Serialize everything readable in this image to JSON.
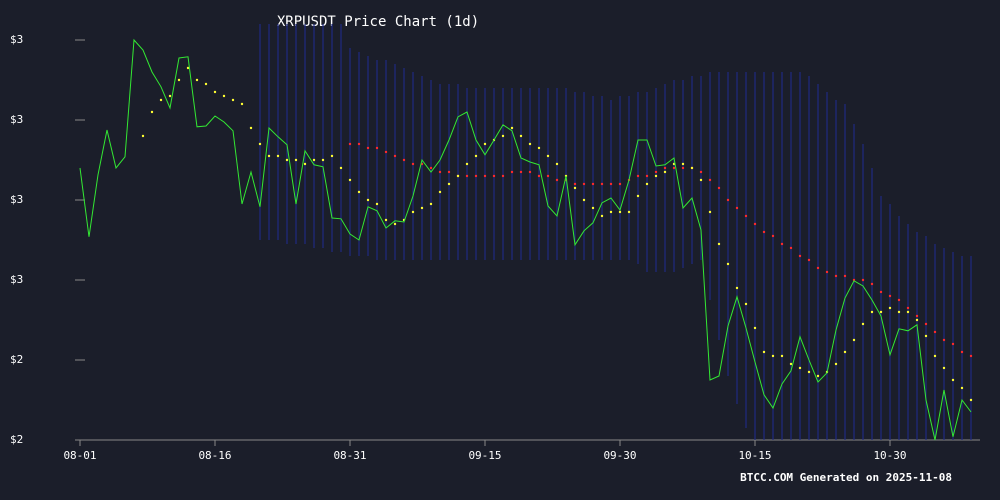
{
  "chart_data": {
    "type": "line",
    "title": "XRPUSDT Price Chart (1d)",
    "footer": "BTCC.COM Generated on 2025-11-08",
    "x": [
      "08-01",
      "08-02",
      "08-03",
      "08-04",
      "08-05",
      "08-06",
      "08-07",
      "08-08",
      "08-09",
      "08-10",
      "08-11",
      "08-12",
      "08-13",
      "08-14",
      "08-15",
      "08-16",
      "08-17",
      "08-18",
      "08-19",
      "08-20",
      "08-21",
      "08-22",
      "08-23",
      "08-24",
      "08-25",
      "08-26",
      "08-27",
      "08-28",
      "08-29",
      "08-30",
      "08-31",
      "09-01",
      "09-02",
      "09-03",
      "09-04",
      "09-05",
      "09-06",
      "09-07",
      "09-08",
      "09-09",
      "09-10",
      "09-11",
      "09-12",
      "09-13",
      "09-14",
      "09-15",
      "09-16",
      "09-17",
      "09-18",
      "09-19",
      "09-20",
      "09-21",
      "09-22",
      "09-23",
      "09-24",
      "09-25",
      "09-26",
      "09-27",
      "09-28",
      "09-29",
      "09-30",
      "10-01",
      "10-02",
      "10-03",
      "10-04",
      "10-05",
      "10-06",
      "10-07",
      "10-08",
      "10-09",
      "10-10",
      "10-11",
      "10-12",
      "10-13",
      "10-14",
      "10-15",
      "10-16",
      "10-17",
      "10-18",
      "10-19",
      "10-20",
      "10-21",
      "10-22",
      "10-23",
      "10-24",
      "10-25",
      "10-26",
      "10-27",
      "10-28",
      "10-29",
      "10-30",
      "10-31",
      "11-01",
      "11-02",
      "11-03",
      "11-04",
      "11-05",
      "11-06",
      "11-07",
      "11-08"
    ],
    "xticks": [
      "08-01",
      "08-16",
      "08-31",
      "09-15",
      "09-30",
      "10-15",
      "10-30"
    ],
    "ylim": [
      2.2,
      3.25
    ],
    "yticks": [
      {
        "value": 3.2,
        "label": "$3"
      },
      {
        "value": 3.0,
        "label": "$3"
      },
      {
        "value": 2.8,
        "label": "$3"
      },
      {
        "value": 2.6,
        "label": "$3"
      },
      {
        "value": 2.4,
        "label": "$2"
      },
      {
        "value": 2.2,
        "label": "$2"
      }
    ],
    "grid": false,
    "band": {
      "color": "#1f2a80",
      "upper": [
        null,
        null,
        null,
        null,
        null,
        null,
        null,
        null,
        null,
        null,
        null,
        null,
        null,
        null,
        null,
        null,
        null,
        null,
        null,
        null,
        3.24,
        3.24,
        3.24,
        3.24,
        3.24,
        3.24,
        3.24,
        3.24,
        3.24,
        3.24,
        3.18,
        3.17,
        3.16,
        3.15,
        3.15,
        3.14,
        3.13,
        3.12,
        3.11,
        3.1,
        3.09,
        3.09,
        3.09,
        3.08,
        3.08,
        3.08,
        3.08,
        3.08,
        3.08,
        3.08,
        3.08,
        3.08,
        3.08,
        3.08,
        3.08,
        3.07,
        3.07,
        3.06,
        3.06,
        3.05,
        3.06,
        3.06,
        3.07,
        3.07,
        3.08,
        3.09,
        3.1,
        3.1,
        3.11,
        3.11,
        3.12,
        3.12,
        3.12,
        3.12,
        3.12,
        3.12,
        3.12,
        3.12,
        3.12,
        3.12,
        3.12,
        3.11,
        3.09,
        3.07,
        3.05,
        3.04,
        2.99,
        2.94,
        2.88,
        2.81,
        2.79,
        2.76,
        2.74,
        2.72,
        2.71,
        2.69,
        2.68,
        2.67,
        2.66,
        2.66
      ],
      "lower": [
        null,
        null,
        null,
        null,
        null,
        null,
        null,
        null,
        null,
        null,
        null,
        null,
        null,
        null,
        null,
        null,
        null,
        null,
        null,
        null,
        2.7,
        2.7,
        2.7,
        2.69,
        2.69,
        2.69,
        2.68,
        2.68,
        2.67,
        2.67,
        2.66,
        2.66,
        2.66,
        2.65,
        2.65,
        2.65,
        2.65,
        2.65,
        2.65,
        2.65,
        2.65,
        2.65,
        2.65,
        2.65,
        2.65,
        2.65,
        2.65,
        2.65,
        2.65,
        2.65,
        2.65,
        2.65,
        2.65,
        2.65,
        2.65,
        2.65,
        2.65,
        2.65,
        2.65,
        2.65,
        2.65,
        2.65,
        2.64,
        2.62,
        2.62,
        2.62,
        2.62,
        2.63,
        2.64,
        2.65,
        2.55,
        2.45,
        2.36,
        2.29,
        2.23,
        2.2,
        2.2,
        2.2,
        2.2,
        2.2,
        2.2,
        2.2,
        2.2,
        2.2,
        2.2,
        2.2,
        2.2,
        2.2,
        2.2,
        2.2,
        2.2,
        2.2,
        2.2,
        2.2,
        2.2,
        2.2,
        2.2,
        2.2,
        2.2,
        2.2
      ]
    },
    "series": [
      {
        "color": "#ff2a2a",
        "style": "dots",
        "values": [
          null,
          null,
          null,
          null,
          null,
          null,
          null,
          null,
          null,
          null,
          null,
          null,
          null,
          null,
          null,
          null,
          null,
          null,
          null,
          null,
          null,
          null,
          null,
          null,
          null,
          null,
          null,
          null,
          null,
          null,
          2.94,
          2.94,
          2.93,
          2.93,
          2.92,
          2.91,
          2.9,
          2.89,
          2.89,
          2.88,
          2.87,
          2.87,
          2.86,
          2.86,
          2.86,
          2.86,
          2.86,
          2.86,
          2.87,
          2.87,
          2.87,
          2.86,
          2.86,
          2.85,
          2.85,
          2.84,
          2.84,
          2.84,
          2.84,
          2.84,
          2.84,
          2.85,
          2.86,
          2.86,
          2.87,
          2.88,
          2.88,
          2.88,
          2.88,
          2.87,
          2.85,
          2.83,
          2.8,
          2.78,
          2.76,
          2.74,
          2.72,
          2.71,
          2.69,
          2.68,
          2.66,
          2.65,
          2.63,
          2.62,
          2.61,
          2.61,
          2.6,
          2.6,
          2.59,
          2.57,
          2.56,
          2.55,
          2.53,
          2.51,
          2.49,
          2.47,
          2.45,
          2.44,
          2.42,
          2.41
        ]
      },
      {
        "color": "#ffff33",
        "style": "dots",
        "values": [
          null,
          null,
          null,
          null,
          null,
          null,
          null,
          2.96,
          3.02,
          3.05,
          3.06,
          3.1,
          3.13,
          3.1,
          3.09,
          3.07,
          3.06,
          3.05,
          3.04,
          2.98,
          2.94,
          2.91,
          2.91,
          2.9,
          2.9,
          2.89,
          2.9,
          2.9,
          2.91,
          2.88,
          2.85,
          2.82,
          2.8,
          2.79,
          2.75,
          2.74,
          2.75,
          2.77,
          2.78,
          2.79,
          2.82,
          2.84,
          2.86,
          2.89,
          2.91,
          2.94,
          2.95,
          2.96,
          2.98,
          2.96,
          2.94,
          2.93,
          2.91,
          2.89,
          2.86,
          2.83,
          2.8,
          2.78,
          2.76,
          2.77,
          2.77,
          2.77,
          2.81,
          2.84,
          2.86,
          2.87,
          2.89,
          2.89,
          2.88,
          2.85,
          2.77,
          2.69,
          2.64,
          2.58,
          2.54,
          2.48,
          2.42,
          2.41,
          2.41,
          2.39,
          2.38,
          2.37,
          2.36,
          2.37,
          2.39,
          2.42,
          2.45,
          2.49,
          2.52,
          2.52,
          2.53,
          2.52,
          2.52,
          2.5,
          2.46,
          2.41,
          2.38,
          2.35,
          2.33,
          2.3
        ]
      },
      {
        "color": "#33e833",
        "style": "line",
        "values": [
          2.88,
          2.708,
          2.863,
          2.975,
          2.88,
          2.908,
          3.2,
          3.175,
          3.12,
          3.083,
          3.03,
          3.155,
          3.158,
          2.983,
          2.985,
          3.01,
          2.995,
          2.973,
          2.79,
          2.87,
          2.783,
          2.98,
          2.958,
          2.938,
          2.79,
          2.923,
          2.888,
          2.883,
          2.755,
          2.753,
          2.715,
          2.7,
          2.783,
          2.773,
          2.73,
          2.748,
          2.745,
          2.81,
          2.9,
          2.87,
          2.9,
          2.95,
          3.008,
          3.02,
          2.95,
          2.913,
          2.95,
          2.988,
          2.973,
          2.905,
          2.895,
          2.888,
          2.785,
          2.76,
          2.86,
          2.688,
          2.723,
          2.743,
          2.793,
          2.805,
          2.775,
          2.85,
          2.95,
          2.95,
          2.885,
          2.888,
          2.905,
          2.78,
          2.805,
          2.725,
          2.35,
          2.36,
          2.485,
          2.558,
          2.48,
          2.395,
          2.313,
          2.28,
          2.34,
          2.373,
          2.458,
          2.4,
          2.345,
          2.368,
          2.475,
          2.555,
          2.598,
          2.585,
          2.55,
          2.51,
          2.413,
          2.478,
          2.473,
          2.488,
          2.3,
          2.2,
          2.325,
          2.208,
          2.3,
          2.27
        ]
      }
    ]
  }
}
